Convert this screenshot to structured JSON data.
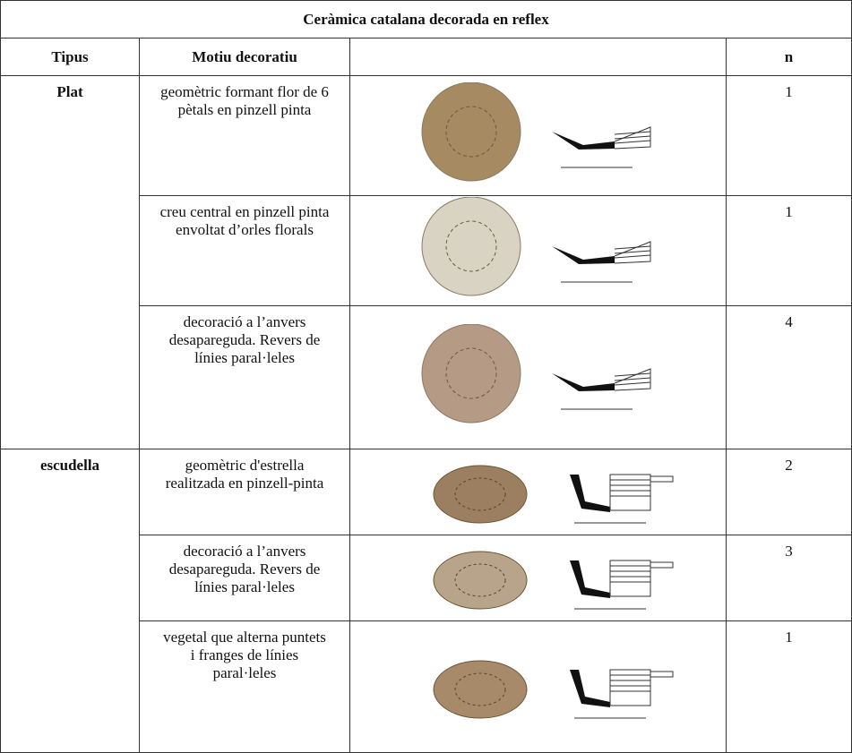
{
  "table": {
    "title": "Ceràmica catalana decorada en reflex",
    "header": [
      "Tipus",
      "Motiu decoratiu",
      "n"
    ],
    "groups": [
      {
        "tipus": "Plat",
        "items": [
          {
            "motiu": "geomètric formant flor de 6 pètals en pinzell pinta",
            "n": 1
          },
          {
            "motiu": "creu central en pinzell pinta envoltat d’orles florals",
            "n": 1
          },
          {
            "motiu": "decoració a l’anvers desapareguda. Revers de línies paral·leles",
            "n": 4
          }
        ]
      },
      {
        "tipus": "escudella",
        "items": [
          {
            "motiu": "geomètric d'estrella realitzada en pinzell-pinta",
            "n": 2
          },
          {
            "motiu": "decoració a l’anvers desapareguda. Revers de línies paral·leles",
            "n": 3
          },
          {
            "motiu": "vegetal que alterna puntets i franges de línies paral·leles",
            "n": 1
          }
        ]
      }
    ]
  }
}
